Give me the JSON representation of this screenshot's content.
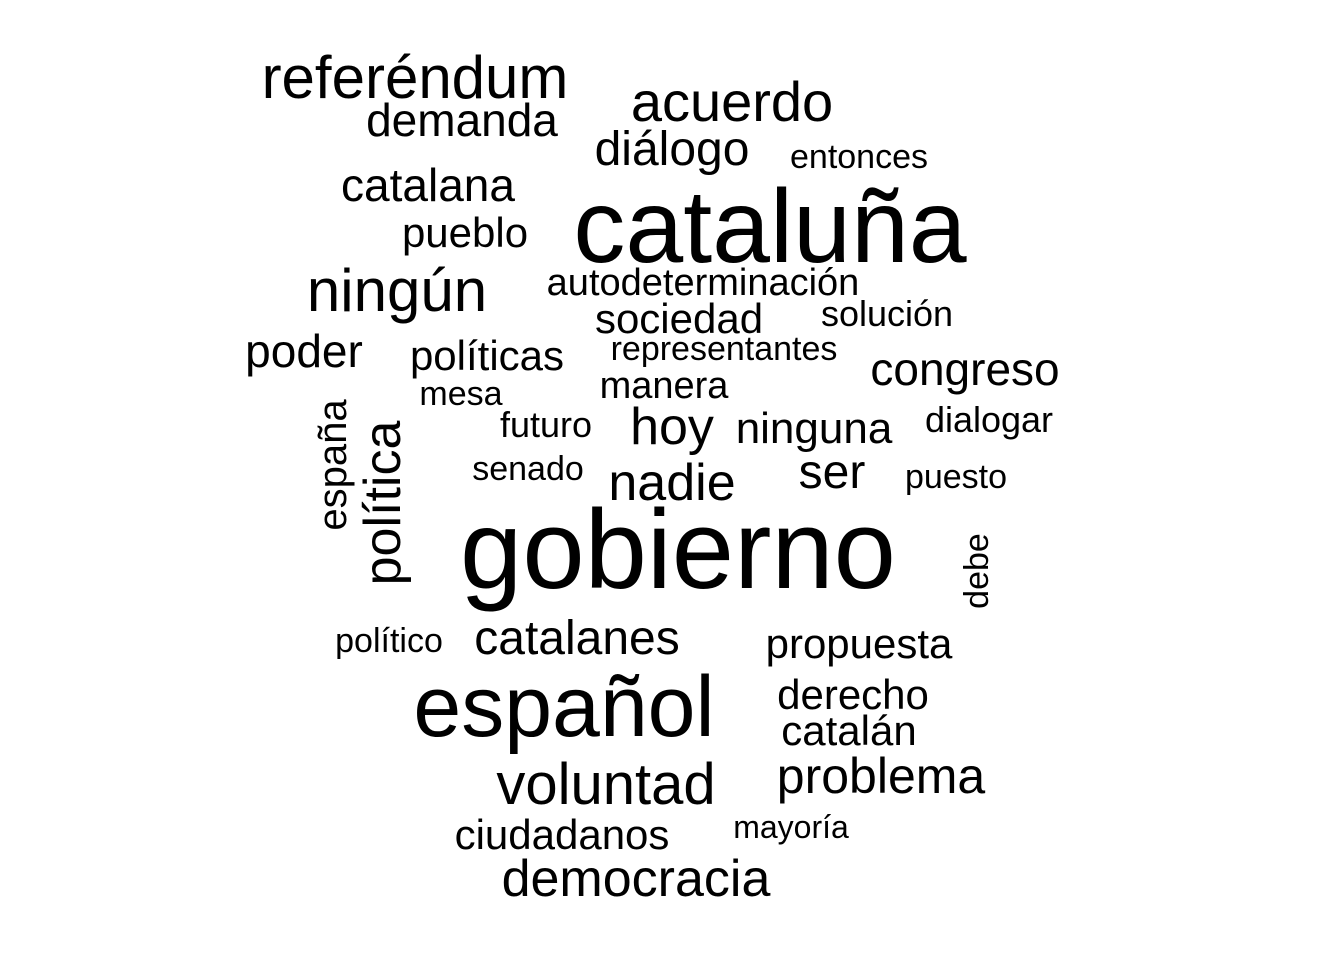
{
  "words": [
    {
      "text": "gobierno"
    },
    {
      "text": "cataluña"
    },
    {
      "text": "español"
    },
    {
      "text": "política"
    },
    {
      "text": "referéndum"
    },
    {
      "text": "ningún"
    },
    {
      "text": "acuerdo"
    },
    {
      "text": "voluntad"
    },
    {
      "text": "democracia"
    },
    {
      "text": "nadie"
    },
    {
      "text": "problema"
    },
    {
      "text": "hoy"
    },
    {
      "text": "catalanes"
    },
    {
      "text": "ser"
    },
    {
      "text": "diálogo"
    },
    {
      "text": "congreso"
    },
    {
      "text": "catalana"
    },
    {
      "text": "demanda"
    },
    {
      "text": "poder"
    },
    {
      "text": "sociedad"
    },
    {
      "text": "ninguna"
    },
    {
      "text": "políticas"
    },
    {
      "text": "propuesta"
    },
    {
      "text": "derecho"
    },
    {
      "text": "catalán"
    },
    {
      "text": "ciudadanos"
    },
    {
      "text": "pueblo"
    },
    {
      "text": "españa"
    },
    {
      "text": "autodeterminación"
    },
    {
      "text": "manera"
    },
    {
      "text": "dialogar"
    },
    {
      "text": "solución"
    },
    {
      "text": "futuro"
    },
    {
      "text": "representantes"
    },
    {
      "text": "entonces"
    },
    {
      "text": "senado"
    },
    {
      "text": "mesa"
    },
    {
      "text": "puesto"
    },
    {
      "text": "debe"
    },
    {
      "text": "político"
    },
    {
      "text": "mayoría"
    }
  ],
  "text_color": "#000000",
  "background_color": "#ffffff"
}
